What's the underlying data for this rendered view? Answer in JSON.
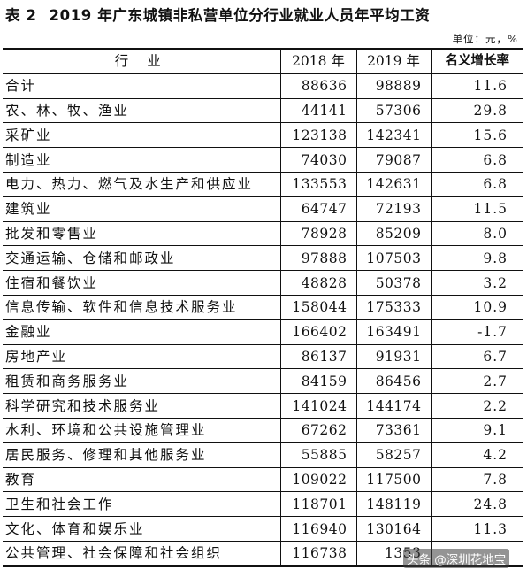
{
  "title": {
    "label": "表 2",
    "text": "2019 年广东城镇非私营单位分行业就业人员年平均工资"
  },
  "unit": "单位：元，%",
  "header": {
    "industry": "行 业",
    "y2018": "2018 年",
    "y2019": "2019 年",
    "growth": "名义增长率"
  },
  "rows": [
    {
      "name": "合计",
      "y2018": "88636",
      "y2019": "98889",
      "growth": "11.6"
    },
    {
      "name": "农、林、牧、渔业",
      "y2018": "44141",
      "y2019": "57306",
      "growth": "29.8"
    },
    {
      "name": "采矿业",
      "y2018": "123138",
      "y2019": "142341",
      "growth": "15.6"
    },
    {
      "name": "制造业",
      "y2018": "74030",
      "y2019": "79087",
      "growth": "6.8"
    },
    {
      "name": "电力、热力、燃气及水生产和供应业",
      "y2018": "133553",
      "y2019": "142631",
      "growth": "6.8"
    },
    {
      "name": "建筑业",
      "y2018": "64747",
      "y2019": "72193",
      "growth": "11.5"
    },
    {
      "name": "批发和零售业",
      "y2018": "78928",
      "y2019": "85209",
      "growth": "8.0"
    },
    {
      "name": "交通运输、仓储和邮政业",
      "y2018": "97888",
      "y2019": "107503",
      "growth": "9.8"
    },
    {
      "name": "住宿和餐饮业",
      "y2018": "48828",
      "y2019": "50378",
      "growth": "3.2"
    },
    {
      "name": "信息传输、软件和信息技术服务业",
      "y2018": "158044",
      "y2019": "175333",
      "growth": "10.9"
    },
    {
      "name": "金融业",
      "y2018": "166402",
      "y2019": "163491",
      "growth": "-1.7"
    },
    {
      "name": "房地产业",
      "y2018": "86137",
      "y2019": "91931",
      "growth": "6.7"
    },
    {
      "name": "租赁和商务服务业",
      "y2018": "84159",
      "y2019": "86456",
      "growth": "2.7"
    },
    {
      "name": "科学研究和技术服务业",
      "y2018": "141024",
      "y2019": "144174",
      "growth": "2.2"
    },
    {
      "name": "水利、环境和公共设施管理业",
      "y2018": "67262",
      "y2019": "73361",
      "growth": "9.1"
    },
    {
      "name": "居民服务、修理和其他服务业",
      "y2018": "55885",
      "y2019": "58257",
      "growth": "4.2"
    },
    {
      "name": "教育",
      "y2018": "109022",
      "y2019": "117500",
      "growth": "7.8"
    },
    {
      "name": "卫生和社会工作",
      "y2018": "118701",
      "y2019": "148119",
      "growth": "24.8"
    },
    {
      "name": "文化、体育和娱乐业",
      "y2018": "116940",
      "y2019": "130164",
      "growth": "11.3"
    },
    {
      "name": "公共管理、社会保障和社会组织",
      "y2018": "116738",
      "y2019": "1353",
      "growth": ""
    }
  ],
  "watermark": "头条 @深圳花地宝"
}
